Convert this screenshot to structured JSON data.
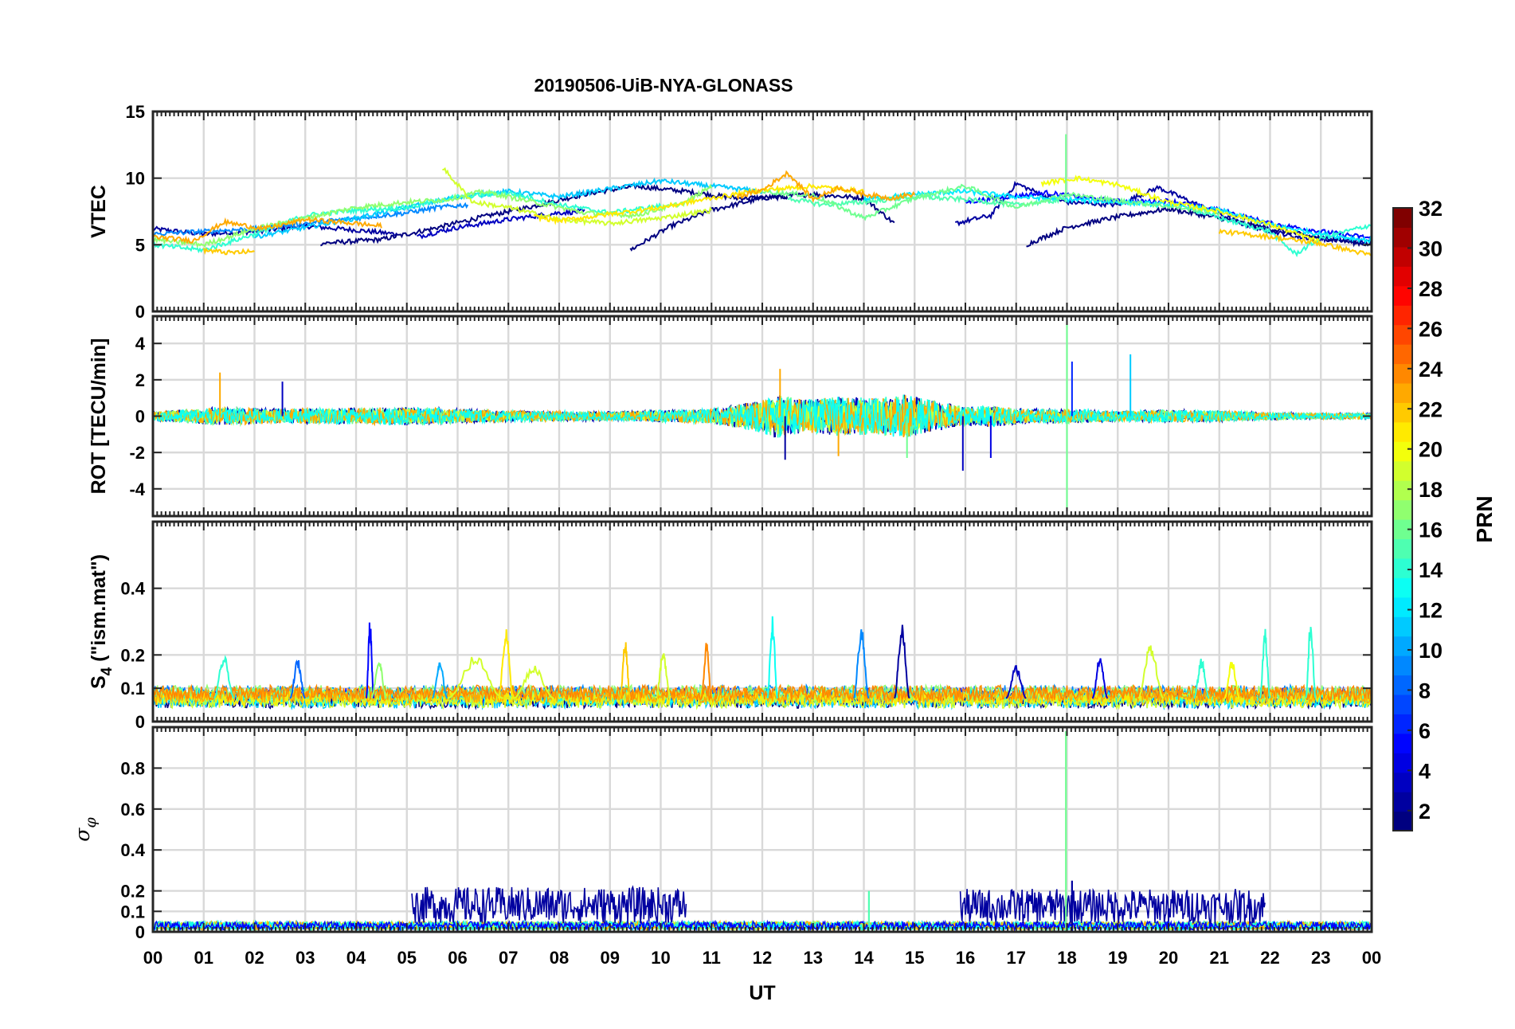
{
  "chart_data": {
    "type": "line",
    "title": "20190506-UiB-NYA-GLONASS",
    "xlabel": "UT",
    "xlim": [
      0,
      24
    ],
    "x_tick_labels": [
      "00",
      "01",
      "02",
      "03",
      "04",
      "05",
      "06",
      "07",
      "08",
      "09",
      "10",
      "11",
      "12",
      "13",
      "14",
      "15",
      "16",
      "17",
      "18",
      "19",
      "20",
      "21",
      "22",
      "23",
      "00"
    ],
    "colorbar": {
      "label": "PRN",
      "colormap": "jet",
      "range": [
        1,
        32
      ],
      "tick_labels": [
        "2",
        "4",
        "6",
        "8",
        "10",
        "12",
        "14",
        "16",
        "18",
        "20",
        "22",
        "24",
        "26",
        "28",
        "30",
        "32"
      ]
    },
    "panels": [
      {
        "name": "vtec",
        "ylabel": "VTEC",
        "ylim": [
          0,
          15
        ],
        "ytick_labels": [
          "0",
          "5",
          "10",
          "15"
        ],
        "ytick_values": [
          0,
          5,
          10,
          15
        ],
        "series": [
          {
            "prn": 2,
            "x": [
              0.0,
              1.0,
              2.0,
              3.0,
              4.0,
              4.8
            ],
            "y": [
              6.2,
              5.8,
              6.0,
              6.4,
              6.1,
              5.8
            ]
          },
          {
            "prn": 1,
            "x": [
              3.3,
              4.5,
              5.5,
              6.5,
              7.5,
              8.5,
              9.5,
              10.5,
              11.5,
              12.5
            ],
            "y": [
              5.1,
              5.4,
              6.2,
              7.1,
              7.9,
              8.8,
              9.4,
              9.0,
              8.5,
              8.6
            ]
          },
          {
            "prn": 1,
            "x": [
              9.4,
              10.2,
              11.0,
              12.0,
              13.0,
              14.0,
              14.6
            ],
            "y": [
              4.6,
              6.4,
              7.6,
              8.5,
              8.8,
              8.5,
              6.6
            ]
          },
          {
            "prn": 3,
            "x": [
              5.2,
              6.0,
              7.0,
              8.0,
              8.5
            ],
            "y": [
              5.6,
              6.3,
              6.9,
              7.4,
              7.5
            ]
          },
          {
            "prn": 2,
            "x": [
              15.8,
              16.5,
              17.0,
              17.6,
              18.0,
              19.0,
              19.8,
              20.4,
              21.0,
              21.5,
              22.5,
              24.0
            ],
            "y": [
              6.6,
              7.2,
              9.6,
              8.6,
              8.2,
              8.0,
              9.3,
              8.3,
              7.3,
              6.5,
              5.6,
              5.2
            ]
          },
          {
            "prn": 1,
            "x": [
              17.2,
              18.0,
              19.0,
              20.0,
              21.0,
              22.0,
              23.0,
              24.0
            ],
            "y": [
              5.0,
              6.3,
              7.1,
              7.7,
              7.0,
              6.2,
              5.5,
              5.0
            ]
          },
          {
            "prn": 5,
            "x": [
              16.0,
              16.8,
              17.6,
              18.4,
              19.2,
              20.0,
              21.0,
              22.0,
              23.0,
              24.0
            ],
            "y": [
              8.2,
              8.6,
              8.9,
              8.5,
              8.2,
              8.3,
              7.6,
              6.6,
              6.0,
              5.5
            ]
          },
          {
            "prn": 9,
            "x": [
              0.0,
              1.0,
              2.0,
              3.0,
              4.0,
              5.0,
              5.6,
              6.2
            ],
            "y": [
              5.8,
              6.0,
              6.2,
              6.6,
              7.0,
              7.4,
              7.8,
              8.0
            ]
          },
          {
            "prn": 11,
            "x": [
              2.0,
              3.0,
              4.0,
              5.0,
              6.0,
              7.0,
              8.0,
              9.0,
              10.0,
              11.0,
              12.0
            ],
            "y": [
              5.6,
              6.3,
              7.0,
              7.8,
              8.6,
              9.0,
              8.6,
              9.2,
              9.8,
              9.4,
              9.0
            ]
          },
          {
            "prn": 12,
            "x": [
              14.0,
              15.0,
              16.0,
              17.0,
              18.0,
              19.0,
              20.0,
              21.0,
              22.0,
              23.0,
              24.0
            ],
            "y": [
              8.4,
              8.8,
              9.0,
              8.6,
              8.4,
              8.2,
              8.0,
              7.6,
              6.5,
              5.8,
              5.3
            ]
          },
          {
            "prn": 14,
            "x": [
              0.0,
              1.0,
              2.0,
              3.0,
              4.0,
              5.0,
              6.0,
              7.0,
              8.0,
              9.0,
              10.0
            ],
            "y": [
              5.0,
              4.6,
              5.8,
              7.2,
              7.6,
              7.8,
              8.6,
              8.9,
              8.0,
              7.4,
              7.9
            ]
          },
          {
            "prn": 15,
            "x": [
              12.5,
              13.2,
              14.0,
              15.0,
              16.0,
              17.0,
              18.0
            ],
            "y": [
              8.5,
              8.0,
              8.2,
              8.6,
              8.4,
              8.0,
              8.4
            ]
          },
          {
            "prn": 14,
            "x": [
              20.5,
              21.2,
              22.0,
              22.5,
              23.0,
              24.0
            ],
            "y": [
              7.6,
              6.8,
              6.0,
              4.3,
              5.5,
              6.5
            ]
          },
          {
            "prn": 17,
            "x": [
              0.0,
              1.0,
              2.0,
              3.0,
              4.0,
              5.0,
              5.8,
              6.5,
              7.5,
              8.5,
              9.5,
              10.5,
              11.0
            ],
            "y": [
              5.4,
              5.0,
              6.2,
              7.0,
              7.8,
              8.2,
              8.4,
              9.0,
              8.2,
              7.4,
              7.2,
              8.2,
              9.4
            ]
          },
          {
            "prn": 16,
            "x": [
              12.0,
              13.0,
              14.0,
              15.0,
              16.0,
              17.0,
              18.0,
              19.0,
              20.0,
              21.0
            ],
            "y": [
              9.0,
              8.7,
              7.0,
              8.5,
              9.4,
              7.8,
              8.8,
              8.3,
              7.9,
              7.4
            ]
          },
          {
            "prn": 19,
            "x": [
              5.7,
              6.3,
              7.0,
              8.0,
              9.0,
              10.0,
              11.0
            ],
            "y": [
              10.8,
              8.2,
              7.8,
              6.9,
              6.6,
              7.0,
              7.6
            ]
          },
          {
            "prn": 20,
            "x": [
              17.5,
              18.2,
              19.0,
              20.0,
              21.0,
              22.0,
              23.0
            ],
            "y": [
              9.6,
              10.0,
              9.5,
              8.2,
              7.5,
              6.5,
              5.2
            ]
          },
          {
            "prn": 21,
            "x": [
              7.5,
              8.0,
              9.0,
              10.0,
              11.0,
              12.0,
              13.0,
              14.0
            ],
            "y": [
              7.1,
              6.8,
              7.3,
              7.8,
              8.5,
              9.1,
              9.4,
              9.0
            ]
          },
          {
            "prn": 22,
            "x": [
              21.0,
              22.0,
              23.0,
              24.0
            ],
            "y": [
              6.0,
              5.6,
              5.1,
              4.2
            ]
          },
          {
            "prn": 23,
            "x": [
              0.0,
              0.8,
              1.4,
              2.2,
              3.0,
              4.0,
              4.5
            ],
            "y": [
              5.6,
              5.3,
              6.7,
              6.2,
              6.9,
              6.6,
              6.4
            ]
          },
          {
            "prn": 23,
            "x": [
              11.5,
              12.0,
              12.5,
              13.0,
              13.5,
              14.0,
              14.5,
              15.0
            ],
            "y": [
              8.6,
              9.1,
              10.4,
              8.4,
              9.3,
              8.8,
              8.5,
              8.8
            ]
          },
          {
            "prn": 22,
            "x": [
              1.0,
              1.5,
              2.0
            ],
            "y": [
              4.6,
              4.4,
              4.5
            ]
          }
        ]
      },
      {
        "name": "rot",
        "ylabel": "ROT [TECU/min]",
        "ylim": [
          -5.5,
          5.5
        ],
        "ytick_labels": [
          "-4",
          "-2",
          "0",
          "2",
          "4"
        ],
        "ytick_values": [
          -4,
          -2,
          0,
          2,
          4
        ],
        "activity": {
          "x": [
            0.0,
            1.3,
            2.6,
            4.0,
            5.0,
            7.0,
            9.0,
            11.0,
            11.8,
            12.3,
            12.8,
            13.5,
            14.2,
            14.8,
            15.3,
            16.0,
            16.5,
            17.2,
            18.0,
            19.0,
            20.0,
            21.0,
            22.0,
            23.0,
            24.0
          ],
          "amp": [
            0.25,
            0.5,
            0.4,
            0.45,
            0.5,
            0.3,
            0.25,
            0.4,
            0.8,
            1.2,
            0.9,
            1.1,
            1.0,
            1.2,
            0.9,
            0.5,
            0.6,
            0.4,
            0.4,
            0.3,
            0.35,
            0.3,
            0.2,
            0.15,
            0.15
          ]
        },
        "spikes": [
          {
            "prn": 23,
            "x": 1.32,
            "y": 2.4
          },
          {
            "prn": 3,
            "x": 2.55,
            "y": 1.9
          },
          {
            "prn": 23,
            "x": 12.35,
            "y": 2.6
          },
          {
            "prn": 2,
            "x": 12.45,
            "y": -2.4
          },
          {
            "prn": 3,
            "x": 15.95,
            "y": -3.0
          },
          {
            "prn": 4,
            "x": 16.5,
            "y": -2.3
          },
          {
            "prn": 16,
            "x": 18.0,
            "y": 5.3
          },
          {
            "prn": 16,
            "x": 18.0,
            "y": -5.4
          },
          {
            "prn": 6,
            "x": 18.1,
            "y": 3.0
          },
          {
            "prn": 11,
            "x": 19.25,
            "y": 3.4
          },
          {
            "prn": 16,
            "x": 14.85,
            "y": -2.3
          },
          {
            "prn": 23,
            "x": 13.5,
            "y": -2.2
          }
        ]
      },
      {
        "name": "s4",
        "ylabel": "S",
        "ylabel_subscript": "4",
        "ylabel_suffix": " (\"ism.mat\")",
        "ylim": [
          0,
          0.6
        ],
        "ytick_labels": [
          "0",
          "0.1",
          "0.2",
          "0.4"
        ],
        "ytick_values": [
          0,
          0.1,
          0.2,
          0.4
        ],
        "background": {
          "base": 0.06,
          "amp": 0.045
        },
        "bursts": [
          {
            "prn": 14,
            "x0": 1.2,
            "x1": 1.6,
            "peak": 0.2
          },
          {
            "prn": 8,
            "x0": 2.7,
            "x1": 3.0,
            "peak": 0.19
          },
          {
            "prn": 5,
            "x0": 4.2,
            "x1": 4.35,
            "peak": 0.31
          },
          {
            "prn": 17,
            "x0": 4.3,
            "x1": 4.6,
            "peak": 0.19
          },
          {
            "prn": 10,
            "x0": 5.5,
            "x1": 5.8,
            "peak": 0.18
          },
          {
            "prn": 19,
            "x0": 5.8,
            "x1": 6.9,
            "peak": 0.2
          },
          {
            "prn": 21,
            "x0": 6.8,
            "x1": 7.1,
            "peak": 0.28
          },
          {
            "prn": 19,
            "x0": 7.1,
            "x1": 7.9,
            "peak": 0.17
          },
          {
            "prn": 22,
            "x0": 9.2,
            "x1": 9.4,
            "peak": 0.25
          },
          {
            "prn": 19,
            "x0": 9.9,
            "x1": 10.2,
            "peak": 0.21
          },
          {
            "prn": 24,
            "x0": 10.8,
            "x1": 11.0,
            "peak": 0.24
          },
          {
            "prn": 13,
            "x0": 12.1,
            "x1": 12.3,
            "peak": 0.32
          },
          {
            "prn": 9,
            "x0": 13.8,
            "x1": 14.1,
            "peak": 0.29
          },
          {
            "prn": 2,
            "x0": 14.6,
            "x1": 14.9,
            "peak": 0.3
          },
          {
            "prn": 3,
            "x0": 16.8,
            "x1": 17.2,
            "peak": 0.17
          },
          {
            "prn": 4,
            "x0": 18.5,
            "x1": 18.8,
            "peak": 0.2
          },
          {
            "prn": 19,
            "x0": 19.4,
            "x1": 19.9,
            "peak": 0.24
          },
          {
            "prn": 14,
            "x0": 20.5,
            "x1": 20.8,
            "peak": 0.19
          },
          {
            "prn": 20,
            "x0": 21.1,
            "x1": 21.4,
            "peak": 0.19
          },
          {
            "prn": 14,
            "x0": 21.8,
            "x1": 22.0,
            "peak": 0.28
          },
          {
            "prn": 14,
            "x0": 22.7,
            "x1": 22.9,
            "peak": 0.31
          }
        ]
      },
      {
        "name": "sigma_phi",
        "ylabel": "σ",
        "ylabel_subscript": "φ",
        "ylim": [
          0,
          1.0
        ],
        "ytick_labels": [
          "0",
          "0.1",
          "0.2",
          "0.4",
          "0.6",
          "0.8"
        ],
        "ytick_values": [
          0,
          0.1,
          0.2,
          0.4,
          0.6,
          0.8
        ],
        "background": {
          "base": 0.03,
          "amp": 0.04
        },
        "elevated_blue": [
          {
            "prn": 2,
            "x0": 5.1,
            "x1": 10.5,
            "level": 0.13
          },
          {
            "prn": 2,
            "x0": 15.9,
            "x1": 21.9,
            "level": 0.12
          }
        ],
        "spikes": [
          {
            "prn": 16,
            "x": 17.98,
            "y": 0.98
          },
          {
            "prn": 15,
            "x": 14.1,
            "y": 0.2
          },
          {
            "prn": 2,
            "x": 18.1,
            "y": 0.25
          }
        ]
      }
    ]
  }
}
